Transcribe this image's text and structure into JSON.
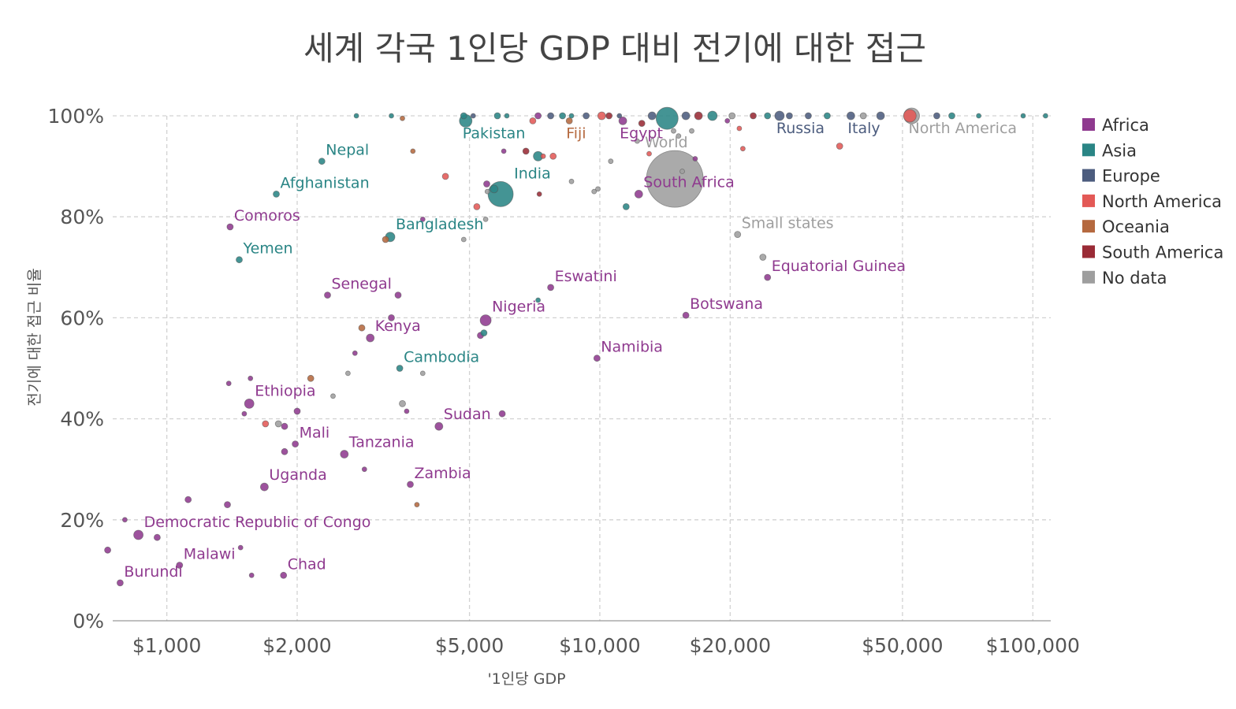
{
  "chart_data": {
    "type": "scatter",
    "title": "세계 각국 1인당 GDP 대비 전기에 대한 접근",
    "xlabel": "'1인당 GDP",
    "ylabel": "전기에 대한 접근 비율",
    "x_scale": "log",
    "xlim": [
      750,
      110000
    ],
    "ylim": [
      0,
      100
    ],
    "x_ticks": [
      {
        "value": 1000,
        "label": "$1,000"
      },
      {
        "value": 2000,
        "label": "$2,000"
      },
      {
        "value": 5000,
        "label": "$5,000"
      },
      {
        "value": 10000,
        "label": "$10,000"
      },
      {
        "value": 20000,
        "label": "$20,000"
      },
      {
        "value": 50000,
        "label": "$50,000"
      },
      {
        "value": 100000,
        "label": "$100,000"
      }
    ],
    "y_ticks": [
      {
        "value": 0,
        "label": "0%"
      },
      {
        "value": 20,
        "label": "20%"
      },
      {
        "value": 40,
        "label": "40%"
      },
      {
        "value": 60,
        "label": "60%"
      },
      {
        "value": 80,
        "label": "80%"
      },
      {
        "value": 100,
        "label": "100%"
      }
    ],
    "grid": true,
    "legend_position": "right",
    "legend": [
      {
        "key": "africa",
        "label": "Africa",
        "color": "#8f3a8f"
      },
      {
        "key": "asia",
        "label": "Asia",
        "color": "#2a8585"
      },
      {
        "key": "europe",
        "label": "Europe",
        "color": "#4c5c7e"
      },
      {
        "key": "namerica",
        "label": "North America",
        "color": "#e35956"
      },
      {
        "key": "oceania",
        "label": "Oceania",
        "color": "#b5693f"
      },
      {
        "key": "samerica",
        "label": "South America",
        "color": "#9a2b36"
      },
      {
        "key": "nodata",
        "label": "No data",
        "color": "#9e9e9e"
      }
    ],
    "points": [
      {
        "name": "Burundi",
        "x": 780,
        "y": 7.5,
        "region": "africa",
        "size": 4,
        "label": "Burundi"
      },
      {
        "name": "Malawi",
        "x": 1070,
        "y": 11,
        "region": "africa",
        "size": 4,
        "label": "Malawi"
      },
      {
        "name": "Chad",
        "x": 1860,
        "y": 9,
        "region": "africa",
        "size": 4,
        "label": "Chad"
      },
      {
        "name": "Democratic Republic of Congo",
        "x": 860,
        "y": 17,
        "region": "africa",
        "size": 6,
        "label": "Democratic Republic of Congo"
      },
      {
        "name": "Uganda",
        "x": 1680,
        "y": 26.5,
        "region": "africa",
        "size": 5,
        "label": "Uganda"
      },
      {
        "name": "Zambia",
        "x": 3650,
        "y": 27,
        "region": "africa",
        "size": 4,
        "label": "Zambia"
      },
      {
        "name": "Tanzania",
        "x": 2570,
        "y": 33,
        "region": "africa",
        "size": 5,
        "label": "Tanzania"
      },
      {
        "name": "Mali",
        "x": 1980,
        "y": 35,
        "region": "africa",
        "size": 4,
        "label": "Mali"
      },
      {
        "name": "Sudan",
        "x": 4250,
        "y": 38.5,
        "region": "africa",
        "size": 5,
        "label": "Sudan"
      },
      {
        "name": "Ethiopia",
        "x": 1550,
        "y": 43,
        "region": "africa",
        "size": 6,
        "label": "Ethiopia"
      },
      {
        "name": "Cambodia",
        "x": 3450,
        "y": 50,
        "region": "asia",
        "size": 4,
        "label": "Cambodia"
      },
      {
        "name": "Namibia",
        "x": 9850,
        "y": 52,
        "region": "africa",
        "size": 4,
        "label": "Namibia"
      },
      {
        "name": "Kenya",
        "x": 2950,
        "y": 56,
        "region": "africa",
        "size": 5,
        "label": "Kenya"
      },
      {
        "name": "Nigeria",
        "x": 5450,
        "y": 59.5,
        "region": "africa",
        "size": 7,
        "label": "Nigeria"
      },
      {
        "name": "Botswana",
        "x": 15800,
        "y": 60.5,
        "region": "africa",
        "size": 4,
        "label": "Botswana"
      },
      {
        "name": "Senegal",
        "x": 2350,
        "y": 64.5,
        "region": "africa",
        "size": 4,
        "label": "Senegal"
      },
      {
        "name": "Eswatini",
        "x": 7700,
        "y": 66,
        "region": "africa",
        "size": 4,
        "label": "Eswatini"
      },
      {
        "name": "Equatorial Guinea",
        "x": 24400,
        "y": 68,
        "region": "africa",
        "size": 4,
        "label": "Equatorial Guinea"
      },
      {
        "name": "Yemen",
        "x": 1470,
        "y": 71.5,
        "region": "asia",
        "size": 4,
        "label": "Yemen"
      },
      {
        "name": "Small states",
        "x": 20800,
        "y": 76.5,
        "region": "nodata",
        "size": 4,
        "label": "Small states"
      },
      {
        "name": "Bangladesh",
        "x": 3280,
        "y": 76,
        "region": "asia",
        "size": 6,
        "label": "Bangladesh"
      },
      {
        "name": "Comoros",
        "x": 1400,
        "y": 78,
        "region": "africa",
        "size": 4,
        "label": "Comoros"
      },
      {
        "name": "South Africa",
        "x": 12300,
        "y": 84.5,
        "region": "africa",
        "size": 5,
        "label": "South Africa"
      },
      {
        "name": "India",
        "x": 5900,
        "y": 84.5,
        "region": "asia",
        "size": 16,
        "label": "India"
      },
      {
        "name": "World",
        "x": 14900,
        "y": 87.5,
        "region": "nodata",
        "size": 36,
        "label": "World"
      },
      {
        "name": "Afghanistan",
        "x": 1790,
        "y": 84.5,
        "region": "asia",
        "size": 4,
        "label": "Afghanistan"
      },
      {
        "name": "Nepal",
        "x": 2280,
        "y": 91,
        "region": "asia",
        "size": 4,
        "label": "Nepal"
      },
      {
        "name": "Pakistan",
        "x": 4900,
        "y": 99,
        "region": "asia",
        "size": 8,
        "label": "Pakistan"
      },
      {
        "name": "Fiji",
        "x": 8500,
        "y": 99,
        "region": "oceania",
        "size": 4,
        "label": "Fiji"
      },
      {
        "name": "Egypt",
        "x": 11300,
        "y": 99,
        "region": "africa",
        "size": 5,
        "label": "Egypt"
      },
      {
        "name": "Russia",
        "x": 26000,
        "y": 100,
        "region": "europe",
        "size": 6,
        "label": "Russia"
      },
      {
        "name": "Italy",
        "x": 38000,
        "y": 100,
        "region": "europe",
        "size": 5,
        "label": "Italy"
      },
      {
        "name": "North America",
        "x": 52500,
        "y": 100,
        "region": "nodata",
        "size": 10,
        "label": "North America"
      },
      {
        "name": "",
        "x": 14300,
        "y": 99.5,
        "region": "asia",
        "size": 14
      },
      {
        "name": "",
        "x": 52000,
        "y": 100,
        "region": "namerica",
        "size": 8
      },
      {
        "name": "",
        "x": 730,
        "y": 14,
        "region": "africa",
        "size": 4
      },
      {
        "name": "",
        "x": 800,
        "y": 20,
        "region": "africa",
        "size": 3
      },
      {
        "name": "",
        "x": 950,
        "y": 16.5,
        "region": "africa",
        "size": 4
      },
      {
        "name": "",
        "x": 1120,
        "y": 24,
        "region": "africa",
        "size": 4
      },
      {
        "name": "",
        "x": 1380,
        "y": 23,
        "region": "africa",
        "size": 4
      },
      {
        "name": "",
        "x": 1480,
        "y": 14.5,
        "region": "africa",
        "size": 3
      },
      {
        "name": "",
        "x": 1570,
        "y": 9,
        "region": "africa",
        "size": 3
      },
      {
        "name": "",
        "x": 1870,
        "y": 33.5,
        "region": "africa",
        "size": 4
      },
      {
        "name": "",
        "x": 1870,
        "y": 38.5,
        "region": "africa",
        "size": 4
      },
      {
        "name": "",
        "x": 1510,
        "y": 41,
        "region": "africa",
        "size": 3
      },
      {
        "name": "",
        "x": 1810,
        "y": 39,
        "region": "nodata",
        "size": 4
      },
      {
        "name": "",
        "x": 1690,
        "y": 39,
        "region": "namerica",
        "size": 4
      },
      {
        "name": "",
        "x": 2000,
        "y": 41.5,
        "region": "africa",
        "size": 4
      },
      {
        "name": "",
        "x": 2150,
        "y": 48,
        "region": "oceania",
        "size": 4
      },
      {
        "name": "",
        "x": 2420,
        "y": 44.5,
        "region": "nodata",
        "size": 3
      },
      {
        "name": "",
        "x": 1390,
        "y": 47,
        "region": "africa",
        "size": 3
      },
      {
        "name": "",
        "x": 1560,
        "y": 48,
        "region": "africa",
        "size": 3
      },
      {
        "name": "",
        "x": 2620,
        "y": 49,
        "region": "nodata",
        "size": 3
      },
      {
        "name": "",
        "x": 2720,
        "y": 53,
        "region": "africa",
        "size": 3
      },
      {
        "name": "",
        "x": 2820,
        "y": 58,
        "region": "oceania",
        "size": 4
      },
      {
        "name": "",
        "x": 3300,
        "y": 60,
        "region": "africa",
        "size": 4
      },
      {
        "name": "",
        "x": 3420,
        "y": 64.5,
        "region": "africa",
        "size": 4
      },
      {
        "name": "",
        "x": 3500,
        "y": 43,
        "region": "nodata",
        "size": 4
      },
      {
        "name": "",
        "x": 3580,
        "y": 41.5,
        "region": "africa",
        "size": 3
      },
      {
        "name": "",
        "x": 3900,
        "y": 49,
        "region": "nodata",
        "size": 3
      },
      {
        "name": "",
        "x": 2860,
        "y": 30,
        "region": "africa",
        "size": 3
      },
      {
        "name": "",
        "x": 3780,
        "y": 23,
        "region": "oceania",
        "size": 3
      },
      {
        "name": "",
        "x": 5950,
        "y": 41,
        "region": "africa",
        "size": 4
      },
      {
        "name": "",
        "x": 5300,
        "y": 56.5,
        "region": "africa",
        "size": 4
      },
      {
        "name": "",
        "x": 5400,
        "y": 57,
        "region": "asia",
        "size": 4
      },
      {
        "name": "",
        "x": 7200,
        "y": 63.5,
        "region": "asia",
        "size": 3
      },
      {
        "name": "",
        "x": 3900,
        "y": 79.5,
        "region": "africa",
        "size": 3
      },
      {
        "name": "",
        "x": 4850,
        "y": 75.5,
        "region": "nodata",
        "size": 3
      },
      {
        "name": "",
        "x": 3200,
        "y": 75.5,
        "region": "oceania",
        "size": 4
      },
      {
        "name": "",
        "x": 5200,
        "y": 82,
        "region": "namerica",
        "size": 4
      },
      {
        "name": "",
        "x": 5450,
        "y": 79.5,
        "region": "nodata",
        "size": 3
      },
      {
        "name": "",
        "x": 5500,
        "y": 85,
        "region": "nodata",
        "size": 3
      },
      {
        "name": "",
        "x": 5480,
        "y": 86.5,
        "region": "africa",
        "size": 4
      },
      {
        "name": "",
        "x": 5700,
        "y": 85.5,
        "region": "asia",
        "size": 5
      },
      {
        "name": "",
        "x": 4400,
        "y": 88,
        "region": "namerica",
        "size": 4
      },
      {
        "name": "",
        "x": 3700,
        "y": 93,
        "region": "oceania",
        "size": 3
      },
      {
        "name": "",
        "x": 6000,
        "y": 93,
        "region": "africa",
        "size": 3
      },
      {
        "name": "",
        "x": 6750,
        "y": 93,
        "region": "samerica",
        "size": 4
      },
      {
        "name": "",
        "x": 7200,
        "y": 92,
        "region": "asia",
        "size": 6
      },
      {
        "name": "",
        "x": 7400,
        "y": 92,
        "region": "namerica",
        "size": 3
      },
      {
        "name": "",
        "x": 7800,
        "y": 92,
        "region": "namerica",
        "size": 4
      },
      {
        "name": "",
        "x": 7250,
        "y": 84.5,
        "region": "samerica",
        "size": 3
      },
      {
        "name": "",
        "x": 8600,
        "y": 87,
        "region": "nodata",
        "size": 3
      },
      {
        "name": "",
        "x": 9700,
        "y": 85,
        "region": "nodata",
        "size": 3
      },
      {
        "name": "",
        "x": 9900,
        "y": 85.5,
        "region": "nodata",
        "size": 3
      },
      {
        "name": "",
        "x": 10600,
        "y": 91,
        "region": "nodata",
        "size": 3
      },
      {
        "name": "",
        "x": 11500,
        "y": 82,
        "region": "asia",
        "size": 4
      },
      {
        "name": "",
        "x": 12200,
        "y": 95,
        "region": "nodata",
        "size": 3
      },
      {
        "name": "",
        "x": 13000,
        "y": 92.5,
        "region": "namerica",
        "size": 3
      },
      {
        "name": "",
        "x": 15500,
        "y": 89,
        "region": "nodata",
        "size": 3
      },
      {
        "name": "",
        "x": 16600,
        "y": 91.5,
        "region": "africa",
        "size": 3
      },
      {
        "name": "",
        "x": 15200,
        "y": 96,
        "region": "nodata",
        "size": 3
      },
      {
        "name": "",
        "x": 14800,
        "y": 97,
        "region": "nodata",
        "size": 3
      },
      {
        "name": "",
        "x": 16300,
        "y": 97,
        "region": "nodata",
        "size": 3
      },
      {
        "name": "",
        "x": 19700,
        "y": 99,
        "region": "africa",
        "size": 3
      },
      {
        "name": "",
        "x": 21000,
        "y": 97.5,
        "region": "namerica",
        "size": 3
      },
      {
        "name": "",
        "x": 21400,
        "y": 93.5,
        "region": "namerica",
        "size": 3
      },
      {
        "name": "",
        "x": 23800,
        "y": 72,
        "region": "nodata",
        "size": 4
      },
      {
        "name": "",
        "x": 35800,
        "y": 94,
        "region": "namerica",
        "size": 4
      },
      {
        "name": "",
        "x": 2740,
        "y": 100,
        "region": "asia",
        "size": 3
      },
      {
        "name": "",
        "x": 3300,
        "y": 100,
        "region": "asia",
        "size": 3
      },
      {
        "name": "",
        "x": 3500,
        "y": 99.5,
        "region": "oceania",
        "size": 3
      },
      {
        "name": "",
        "x": 4850,
        "y": 100,
        "region": "asia",
        "size": 4
      },
      {
        "name": "",
        "x": 5100,
        "y": 100,
        "region": "europe",
        "size": 3
      },
      {
        "name": "",
        "x": 5800,
        "y": 100,
        "region": "asia",
        "size": 4
      },
      {
        "name": "",
        "x": 6100,
        "y": 100,
        "region": "asia",
        "size": 3
      },
      {
        "name": "",
        "x": 7000,
        "y": 99,
        "region": "namerica",
        "size": 4
      },
      {
        "name": "",
        "x": 7200,
        "y": 100,
        "region": "africa",
        "size": 4
      },
      {
        "name": "",
        "x": 7700,
        "y": 100,
        "region": "europe",
        "size": 4
      },
      {
        "name": "",
        "x": 8200,
        "y": 100,
        "region": "asia",
        "size": 4
      },
      {
        "name": "",
        "x": 8600,
        "y": 100,
        "region": "asia",
        "size": 3
      },
      {
        "name": "",
        "x": 9300,
        "y": 100,
        "region": "europe",
        "size": 4
      },
      {
        "name": "",
        "x": 10100,
        "y": 100,
        "region": "namerica",
        "size": 5
      },
      {
        "name": "",
        "x": 10500,
        "y": 100,
        "region": "samerica",
        "size": 4
      },
      {
        "name": "",
        "x": 11100,
        "y": 100,
        "region": "europe",
        "size": 3
      },
      {
        "name": "",
        "x": 12500,
        "y": 98.5,
        "region": "samerica",
        "size": 4
      },
      {
        "name": "",
        "x": 13200,
        "y": 100,
        "region": "europe",
        "size": 5
      },
      {
        "name": "",
        "x": 15800,
        "y": 100,
        "region": "europe",
        "size": 5
      },
      {
        "name": "",
        "x": 16900,
        "y": 100,
        "region": "samerica",
        "size": 5
      },
      {
        "name": "",
        "x": 18200,
        "y": 100,
        "region": "asia",
        "size": 6
      },
      {
        "name": "",
        "x": 20200,
        "y": 100,
        "region": "nodata",
        "size": 4
      },
      {
        "name": "",
        "x": 22600,
        "y": 100,
        "region": "samerica",
        "size": 4
      },
      {
        "name": "",
        "x": 24400,
        "y": 100,
        "region": "asia",
        "size": 4
      },
      {
        "name": "",
        "x": 27400,
        "y": 100,
        "region": "europe",
        "size": 4
      },
      {
        "name": "",
        "x": 30300,
        "y": 100,
        "region": "europe",
        "size": 4
      },
      {
        "name": "",
        "x": 33500,
        "y": 100,
        "region": "asia",
        "size": 4
      },
      {
        "name": "",
        "x": 40600,
        "y": 100,
        "region": "nodata",
        "size": 4
      },
      {
        "name": "",
        "x": 44500,
        "y": 100,
        "region": "europe",
        "size": 5
      },
      {
        "name": "",
        "x": 60000,
        "y": 100,
        "region": "europe",
        "size": 4
      },
      {
        "name": "",
        "x": 65000,
        "y": 100,
        "region": "asia",
        "size": 4
      },
      {
        "name": "",
        "x": 75000,
        "y": 100,
        "region": "asia",
        "size": 3
      },
      {
        "name": "",
        "x": 95000,
        "y": 100,
        "region": "asia",
        "size": 3
      },
      {
        "name": "",
        "x": 107000,
        "y": 100,
        "region": "asia",
        "size": 3
      }
    ]
  }
}
